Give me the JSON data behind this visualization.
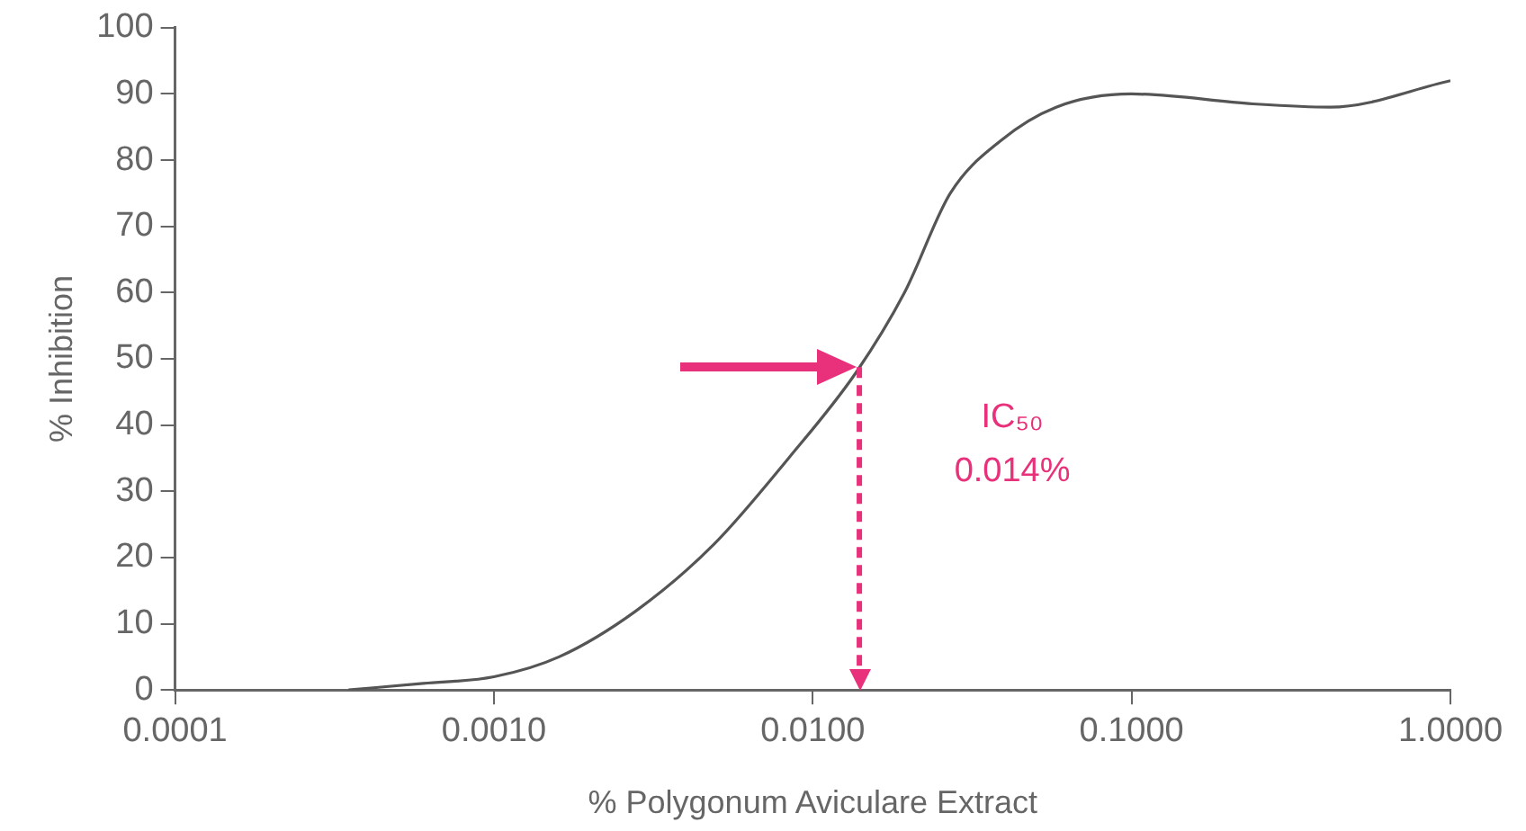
{
  "chart_data": {
    "type": "line",
    "xlabel": "% Polygonum Aviculare Extract",
    "ylabel": "% Inhibition",
    "log": "x",
    "xlim": [
      0.0001,
      1
    ],
    "xticks": [
      {
        "value": 0.0001,
        "label": "0.0001"
      },
      {
        "value": 0.001,
        "label": "0.0010"
      },
      {
        "value": 0.01,
        "label": "0.0100"
      },
      {
        "value": 0.1,
        "label": "0.1000"
      },
      {
        "value": 1,
        "label": "1.0000"
      }
    ],
    "ylim": [
      0,
      100
    ],
    "yticks": [
      0,
      10,
      20,
      30,
      40,
      50,
      60,
      70,
      80,
      90,
      100
    ],
    "grid": false,
    "legend": false,
    "marker": "none",
    "line_style": "solid",
    "series": [
      {
        "color": "#555555",
        "x": [
          0.00035,
          0.0006,
          0.001,
          0.0016,
          0.0028,
          0.0049,
          0.0084,
          0.0137,
          0.0194,
          0.027,
          0.039,
          0.058,
          0.1,
          0.24,
          0.42,
          1
        ],
        "values": [
          0,
          1,
          2,
          5,
          12,
          22,
          35,
          48,
          60,
          75,
          83,
          88,
          90,
          88.5,
          88,
          92
        ]
      }
    ],
    "ref_lines": [
      {
        "axis": "x",
        "value": 0.014,
        "label": "IC₅₀ 0.014%",
        "color": "#e8317a",
        "line_style": "dashed"
      }
    ]
  }
}
